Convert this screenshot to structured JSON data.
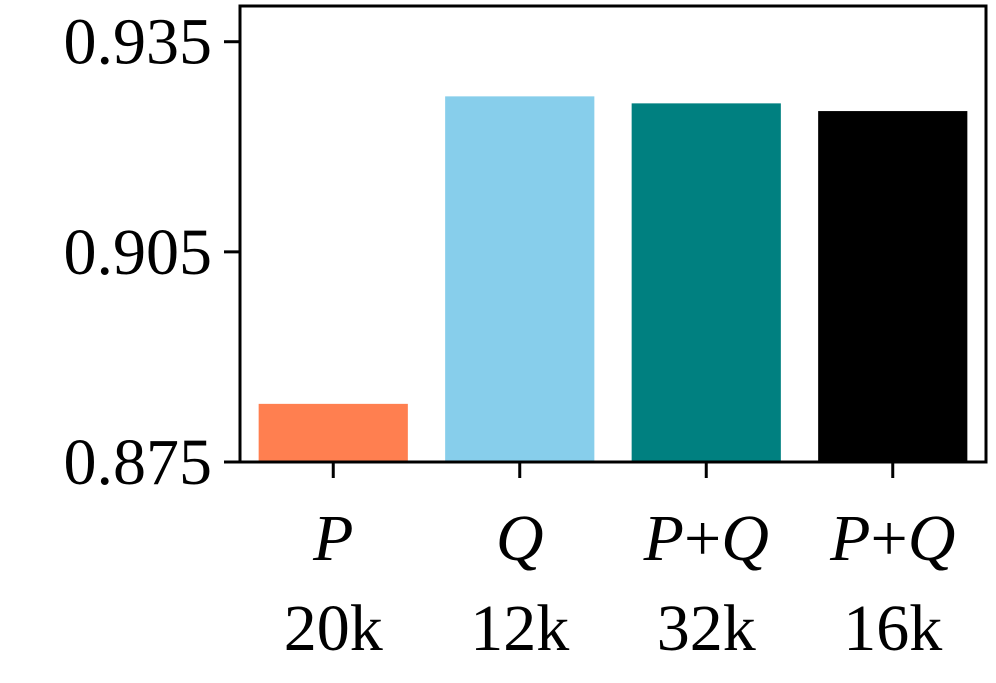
{
  "chart_data": {
    "type": "bar",
    "categories": [
      {
        "line1": "P",
        "line2": "20k"
      },
      {
        "line1": "Q",
        "line2": "12k"
      },
      {
        "line1": "P+Q",
        "line2": "32k"
      },
      {
        "line1": "P+Q",
        "line2": "16k"
      }
    ],
    "values": [
      0.8833,
      0.9272,
      0.9262,
      0.9251
    ],
    "colors": [
      "#ff7f50",
      "#87ceeb",
      "#008080",
      "#000000"
    ],
    "ylim": [
      0.875,
      0.9401
    ],
    "yticks": [
      {
        "value": 0.875,
        "label": "0.875"
      },
      {
        "value": 0.905,
        "label": "0.905"
      },
      {
        "value": 0.935,
        "label": "0.935"
      }
    ],
    "title": "",
    "xlabel": "",
    "ylabel": "",
    "grid": false
  }
}
